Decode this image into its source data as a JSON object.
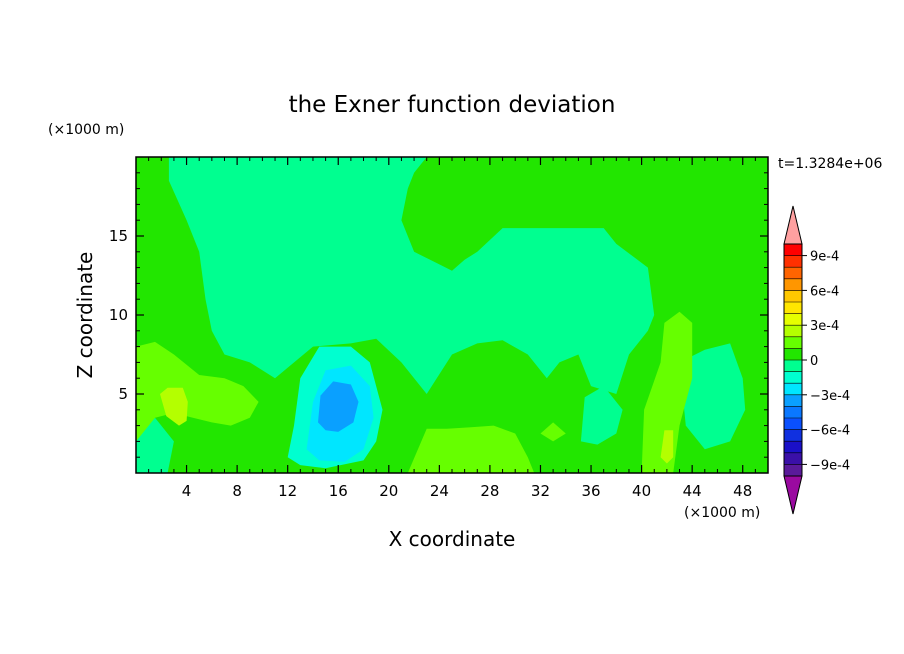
{
  "chart_data": {
    "type": "heatmap",
    "title": "the Exner function deviation",
    "xlabel": "X coordinate",
    "ylabel": "Z coordinate",
    "x_unit": "(×1000 m)",
    "y_unit": "(×1000 m)",
    "time_label": "t=1.3284e+06",
    "xlim": [
      0,
      50
    ],
    "ylim": [
      0,
      20
    ],
    "x_ticks": [
      4,
      8,
      12,
      16,
      20,
      24,
      28,
      32,
      36,
      40,
      44,
      48
    ],
    "y_ticks": [
      5,
      10,
      15
    ],
    "colorbar": {
      "levels": [
        -0.001,
        -0.0009,
        -0.0008,
        -0.0007,
        -0.0006,
        -0.0005,
        -0.0004,
        -0.0003,
        -0.0002,
        -0.0001,
        0,
        0.0001,
        0.0002,
        0.0003,
        0.0004,
        0.0005,
        0.0006,
        0.0007,
        0.0008,
        0.0009,
        0.001
      ],
      "colors": [
        "#5a1a9a",
        "#3a10a8",
        "#1a10c8",
        "#1030e0",
        "#0a50ff",
        "#0a78ff",
        "#0aa0ff",
        "#00e6ff",
        "#00ffd0",
        "#00ff90",
        "#22e600",
        "#66ff00",
        "#b4ff00",
        "#e6ff00",
        "#ffe600",
        "#ffc800",
        "#ff9600",
        "#ff6400",
        "#ff3000",
        "#ff0000"
      ],
      "under_color": "#9a0aa0",
      "over_color": "#ffa0a0",
      "tick_labels": [
        "9e-4",
        "6e-4",
        "3e-4",
        "0",
        "−3e-4",
        "−6e-4",
        "−9e-4"
      ],
      "tick_values": [
        0.0009,
        0.0006,
        0.0003,
        0,
        -0.0003,
        -0.0006,
        -0.0009
      ]
    },
    "regions": [
      {
        "level": 5e-05,
        "polygons": [
          [
            [
              0,
              0
            ],
            [
              50,
              0
            ],
            [
              50,
              20
            ],
            [
              0,
              20
            ]
          ]
        ]
      },
      {
        "level": -5e-05,
        "polygons": [
          [
            [
              2.6,
              20
            ],
            [
              2.6,
              18.5
            ],
            [
              4,
              16
            ],
            [
              5,
              14
            ],
            [
              5.5,
              11
            ],
            [
              6,
              9
            ],
            [
              7,
              7.5
            ],
            [
              9,
              7
            ],
            [
              11,
              6
            ],
            [
              14,
              8
            ],
            [
              17,
              8.2
            ],
            [
              19,
              8.5
            ],
            [
              21,
              7
            ],
            [
              23,
              5
            ],
            [
              25,
              7.5
            ],
            [
              27,
              8.2
            ],
            [
              29,
              8.4
            ],
            [
              31,
              7.5
            ],
            [
              32.5,
              6
            ],
            [
              33.5,
              7
            ],
            [
              35,
              7.5
            ],
            [
              36,
              5.5
            ],
            [
              38,
              5
            ],
            [
              39,
              7.5
            ],
            [
              40.5,
              9
            ],
            [
              41,
              10
            ],
            [
              40.5,
              13
            ],
            [
              38,
              14.5
            ],
            [
              37,
              15.5
            ],
            [
              35,
              15.5
            ],
            [
              32,
              15.5
            ],
            [
              29,
              15.5
            ],
            [
              27,
              14
            ],
            [
              26,
              13.5
            ],
            [
              25,
              12.8
            ],
            [
              24,
              13.2
            ],
            [
              22,
              14
            ],
            [
              21,
              16
            ],
            [
              21.5,
              18
            ],
            [
              22,
              19
            ],
            [
              23,
              20
            ]
          ]
        ]
      },
      {
        "level": -5e-05,
        "polygons": [
          [
            [
              43,
              7
            ],
            [
              45,
              7.8
            ],
            [
              47,
              8.2
            ],
            [
              48,
              6
            ],
            [
              48.2,
              4
            ],
            [
              47,
              2
            ],
            [
              45,
              1.5
            ],
            [
              43.5,
              3
            ]
          ]
        ]
      },
      {
        "level": -5e-05,
        "polygons": [
          [
            [
              0,
              0
            ],
            [
              0,
              3
            ],
            [
              1.5,
              3.5
            ],
            [
              3,
              2
            ],
            [
              2.5,
              0
            ]
          ]
        ]
      },
      {
        "level": -5e-05,
        "polygons": [
          [
            [
              35.2,
              2
            ],
            [
              35.5,
              4.8
            ],
            [
              37,
              5.5
            ],
            [
              38.5,
              4
            ],
            [
              38,
              2.5
            ],
            [
              36.5,
              1.8
            ]
          ]
        ]
      },
      {
        "level": -0.00015,
        "polygons": [
          [
            [
              12,
              1
            ],
            [
              12.5,
              3
            ],
            [
              13,
              6
            ],
            [
              14.5,
              8
            ],
            [
              17,
              8
            ],
            [
              18.5,
              7
            ],
            [
              19.5,
              4
            ],
            [
              19,
              2
            ],
            [
              18,
              0.8
            ],
            [
              15,
              0.3
            ],
            [
              13,
              0.5
            ]
          ]
        ]
      },
      {
        "level": -0.00025,
        "polygons": [
          [
            [
              13.5,
              1.5
            ],
            [
              14,
              4.5
            ],
            [
              15,
              6.5
            ],
            [
              17,
              6.8
            ],
            [
              18.5,
              5.5
            ],
            [
              18.8,
              3.5
            ],
            [
              18,
              1.5
            ],
            [
              16.5,
              0.7
            ],
            [
              14.5,
              0.8
            ]
          ]
        ]
      },
      {
        "level": -0.00035,
        "polygons": [
          [
            [
              14.4,
              3.2
            ],
            [
              14.6,
              4.9
            ],
            [
              15.6,
              5.8
            ],
            [
              17,
              5.6
            ],
            [
              17.6,
              4.5
            ],
            [
              17.2,
              3.2
            ],
            [
              16,
              2.6
            ],
            [
              15,
              2.7
            ]
          ]
        ]
      },
      {
        "level": 0.00015,
        "polygons": [
          [
            [
              0,
              2
            ],
            [
              0,
              8
            ],
            [
              1.5,
              8.3
            ],
            [
              3,
              7.5
            ],
            [
              5,
              6.2
            ],
            [
              7,
              6
            ],
            [
              8.5,
              5.5
            ],
            [
              9.7,
              4.5
            ],
            [
              9,
              3.5
            ],
            [
              7.5,
              3
            ],
            [
              6,
              3.2
            ],
            [
              4.5,
              3.5
            ],
            [
              3,
              3.8
            ],
            [
              1.5,
              3.5
            ]
          ]
        ]
      },
      {
        "level": 0.00015,
        "polygons": [
          [
            [
              21.5,
              0
            ],
            [
              23,
              2.8
            ],
            [
              24.6,
              2.8
            ],
            [
              26.5,
              2.9
            ],
            [
              28.3,
              3
            ],
            [
              30,
              2.5
            ],
            [
              31,
              1
            ],
            [
              31.5,
              0
            ]
          ]
        ]
      },
      {
        "level": 0.00015,
        "polygons": [
          [
            [
              40,
              0
            ],
            [
              40.2,
              4
            ],
            [
              41.5,
              7
            ],
            [
              41.8,
              9.5
            ],
            [
              43,
              10.2
            ],
            [
              44,
              9.5
            ],
            [
              44,
              6
            ],
            [
              43,
              3
            ],
            [
              42.5,
              0
            ]
          ]
        ]
      },
      {
        "level": 0.00015,
        "polygons": [
          [
            [
              32,
              2.5
            ],
            [
              33,
              3.2
            ],
            [
              34,
              2.5
            ],
            [
              33,
              2
            ]
          ]
        ]
      },
      {
        "level": 0.00025,
        "polygons": [
          [
            [
              1.9,
              5
            ],
            [
              2.5,
              5.4
            ],
            [
              3.7,
              5.4
            ],
            [
              4.1,
              4.5
            ],
            [
              4,
              3.3
            ],
            [
              3.4,
              3
            ],
            [
              2.4,
              3.6
            ]
          ]
        ]
      },
      {
        "level": 0.00025,
        "polygons": [
          [
            [
              41.5,
              1
            ],
            [
              41.8,
              2.7
            ],
            [
              42.5,
              2.7
            ],
            [
              42.5,
              1
            ],
            [
              42,
              0.6
            ]
          ]
        ]
      }
    ]
  }
}
